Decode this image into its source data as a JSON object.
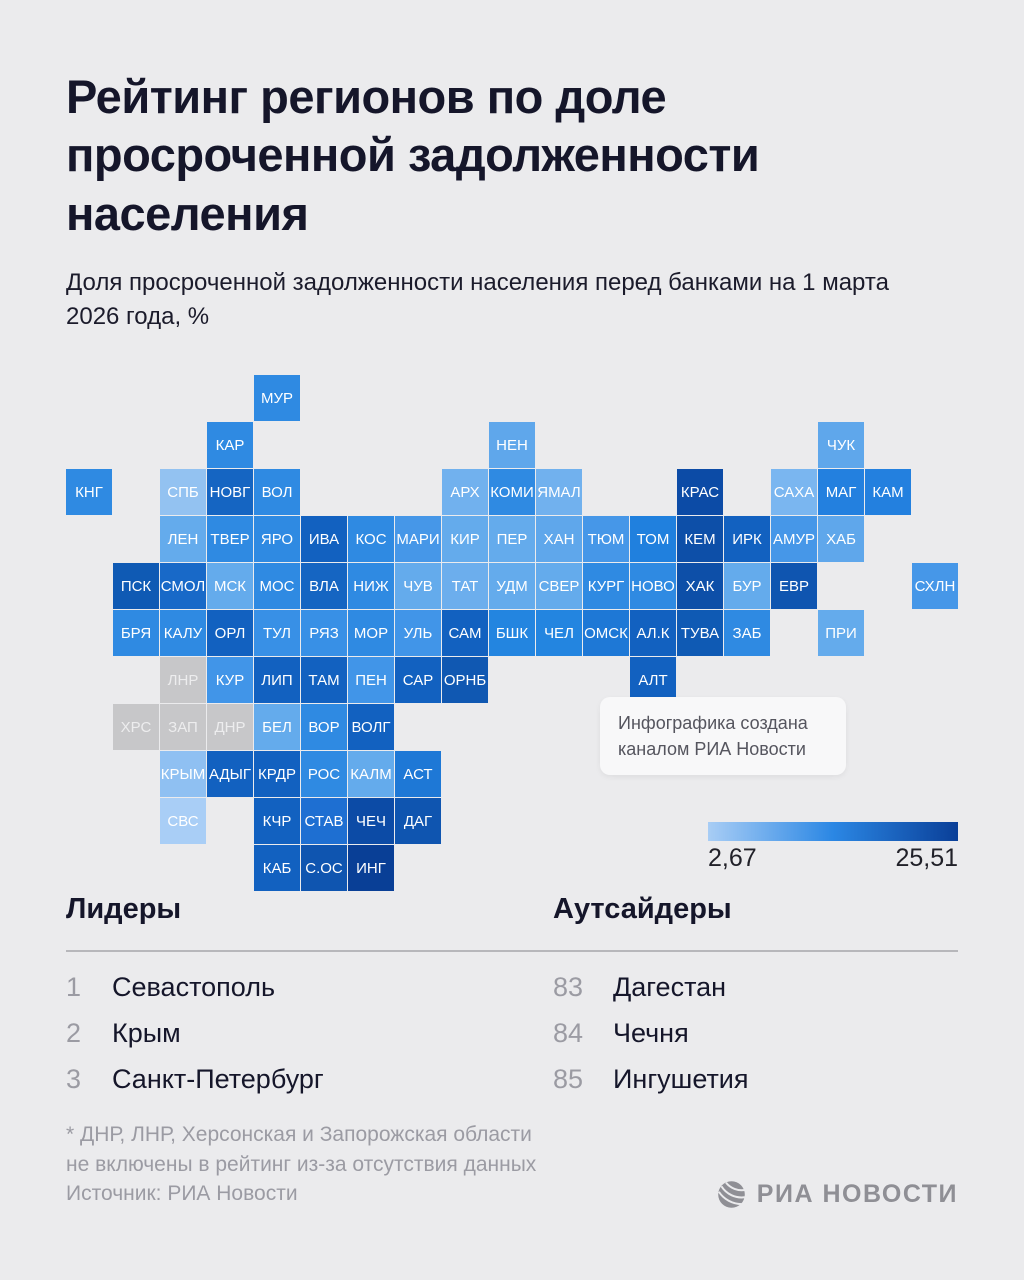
{
  "header": {
    "title": "Рейтинг регионов по доле просроченной задолженности населения",
    "subtitle": "Доля просроченной задолженности населения перед банками на 1 марта 2026 года, %"
  },
  "chart_data": {
    "type": "heatmap",
    "title": "Рейтинг регионов по доле просроченной задолженности населения",
    "subtitle": "Доля просроченной задолженности населения перед банками на 1 марта 2026 года, %",
    "unit": "%",
    "scale": {
      "min": 2.67,
      "max": 25.51,
      "min_label": "2,67",
      "max_label": "25,51",
      "gradient_colors": [
        "#a8cdf5",
        "#2b87e4",
        "#0a3f98"
      ],
      "excluded_color": "#c7c7c9"
    },
    "tiles": [
      {
        "label": "МУР",
        "row": 0,
        "col": 4,
        "color": "#2f8ae2"
      },
      {
        "label": "КАР",
        "row": 1,
        "col": 3,
        "color": "#2f8ae2"
      },
      {
        "label": "НЕН",
        "row": 1,
        "col": 9,
        "color": "#5fa7eb"
      },
      {
        "label": "ЧУК",
        "row": 1,
        "col": 16,
        "color": "#5fa7eb"
      },
      {
        "label": "КНГ",
        "row": 2,
        "col": 0,
        "color": "#2f8ae2"
      },
      {
        "label": "СПБ",
        "row": 2,
        "col": 2,
        "color": "#93c2f1"
      },
      {
        "label": "НОВГ",
        "row": 2,
        "col": 3,
        "color": "#1565c2"
      },
      {
        "label": "ВОЛ",
        "row": 2,
        "col": 4,
        "color": "#2f8ae2"
      },
      {
        "label": "АРХ",
        "row": 2,
        "col": 8,
        "color": "#71b1ee"
      },
      {
        "label": "КОМИ",
        "row": 2,
        "col": 9,
        "color": "#2f8ae2"
      },
      {
        "label": "ЯМАЛ",
        "row": 2,
        "col": 10,
        "color": "#71b1ee"
      },
      {
        "label": "КРАС",
        "row": 2,
        "col": 13,
        "color": "#0c4ba6"
      },
      {
        "label": "САХА",
        "row": 2,
        "col": 15,
        "color": "#7ab6f0"
      },
      {
        "label": "МАГ",
        "row": 2,
        "col": 16,
        "color": "#2380df"
      },
      {
        "label": "КАМ",
        "row": 2,
        "col": 17,
        "color": "#2380df"
      },
      {
        "label": "ЛЕН",
        "row": 3,
        "col": 2,
        "color": "#64abec"
      },
      {
        "label": "ТВЕР",
        "row": 3,
        "col": 3,
        "color": "#2f8ae2"
      },
      {
        "label": "ЯРО",
        "row": 3,
        "col": 4,
        "color": "#2f8ae2"
      },
      {
        "label": "ИВА",
        "row": 3,
        "col": 5,
        "color": "#1261c0"
      },
      {
        "label": "КОС",
        "row": 3,
        "col": 6,
        "color": "#2f8ae2"
      },
      {
        "label": "МАРИ",
        "row": 3,
        "col": 7,
        "color": "#4697e8"
      },
      {
        "label": "КИР",
        "row": 3,
        "col": 8,
        "color": "#64abec"
      },
      {
        "label": "ПЕР",
        "row": 3,
        "col": 9,
        "color": "#64abec"
      },
      {
        "label": "ХАН",
        "row": 3,
        "col": 10,
        "color": "#5fa7eb"
      },
      {
        "label": "ТЮМ",
        "row": 3,
        "col": 11,
        "color": "#4697e8"
      },
      {
        "label": "ТОМ",
        "row": 3,
        "col": 12,
        "color": "#2080de"
      },
      {
        "label": "КЕМ",
        "row": 3,
        "col": 13,
        "color": "#0d4fa8"
      },
      {
        "label": "ИРК",
        "row": 3,
        "col": 14,
        "color": "#1261c0"
      },
      {
        "label": "АМУР",
        "row": 3,
        "col": 15,
        "color": "#4697e8"
      },
      {
        "label": "ХАБ",
        "row": 3,
        "col": 16,
        "color": "#5fa7eb"
      },
      {
        "label": "ПСК",
        "row": 4,
        "col": 1,
        "color": "#0f5ab4"
      },
      {
        "label": "СМОЛ",
        "row": 4,
        "col": 2,
        "color": "#1869c8"
      },
      {
        "label": "МСК",
        "row": 4,
        "col": 3,
        "color": "#64abec"
      },
      {
        "label": "МОС",
        "row": 4,
        "col": 4,
        "color": "#2f8ae2"
      },
      {
        "label": "ВЛА",
        "row": 4,
        "col": 5,
        "color": "#1565c2"
      },
      {
        "label": "НИЖ",
        "row": 4,
        "col": 6,
        "color": "#2f8ae2"
      },
      {
        "label": "ЧУВ",
        "row": 4,
        "col": 7,
        "color": "#64abec"
      },
      {
        "label": "ТАТ",
        "row": 4,
        "col": 8,
        "color": "#6caeed"
      },
      {
        "label": "УДМ",
        "row": 4,
        "col": 9,
        "color": "#64abec"
      },
      {
        "label": "СВЕР",
        "row": 4,
        "col": 10,
        "color": "#64abec"
      },
      {
        "label": "КУРГ",
        "row": 4,
        "col": 11,
        "color": "#2f8ae2"
      },
      {
        "label": "НОВО",
        "row": 4,
        "col": 12,
        "color": "#2f8ae2"
      },
      {
        "label": "ХАК",
        "row": 4,
        "col": 13,
        "color": "#0d4fa8"
      },
      {
        "label": "БУР",
        "row": 4,
        "col": 14,
        "color": "#64abec"
      },
      {
        "label": "ЕВР",
        "row": 4,
        "col": 15,
        "color": "#0f55b0"
      },
      {
        "label": "СХЛН",
        "row": 4,
        "col": 18,
        "color": "#4697e8"
      },
      {
        "label": "БРЯ",
        "row": 5,
        "col": 1,
        "color": "#2f8ae2"
      },
      {
        "label": "КАЛУ",
        "row": 5,
        "col": 2,
        "color": "#2f8ae2"
      },
      {
        "label": "ОРЛ",
        "row": 5,
        "col": 3,
        "color": "#1261c0"
      },
      {
        "label": "ТУЛ",
        "row": 5,
        "col": 4,
        "color": "#3890e6"
      },
      {
        "label": "РЯЗ",
        "row": 5,
        "col": 5,
        "color": "#3890e6"
      },
      {
        "label": "МОР",
        "row": 5,
        "col": 6,
        "color": "#2f8ae2"
      },
      {
        "label": "УЛЬ",
        "row": 5,
        "col": 7,
        "color": "#4195e8"
      },
      {
        "label": "САМ",
        "row": 5,
        "col": 8,
        "color": "#1261c0"
      },
      {
        "label": "БШК",
        "row": 5,
        "col": 9,
        "color": "#2385e0"
      },
      {
        "label": "ЧЕЛ",
        "row": 5,
        "col": 10,
        "color": "#2385e0"
      },
      {
        "label": "ОМСК",
        "row": 5,
        "col": 11,
        "color": "#1e78d6"
      },
      {
        "label": "АЛ.К",
        "row": 5,
        "col": 12,
        "color": "#1261c0"
      },
      {
        "label": "ТУВА",
        "row": 5,
        "col": 13,
        "color": "#0f5ab4"
      },
      {
        "label": "ЗАБ",
        "row": 5,
        "col": 14,
        "color": "#2f8ae2"
      },
      {
        "label": "ПРИ",
        "row": 5,
        "col": 16,
        "color": "#64abec"
      },
      {
        "label": "ЛНР",
        "row": 6,
        "col": 2,
        "color": "#c7c7c9",
        "text": "#ededee",
        "excluded": true
      },
      {
        "label": "КУР",
        "row": 6,
        "col": 3,
        "color": "#4195e8"
      },
      {
        "label": "ЛИП",
        "row": 6,
        "col": 4,
        "color": "#1261c0"
      },
      {
        "label": "ТАМ",
        "row": 6,
        "col": 5,
        "color": "#1261c0"
      },
      {
        "label": "ПЕН",
        "row": 6,
        "col": 6,
        "color": "#4195e8"
      },
      {
        "label": "САР",
        "row": 6,
        "col": 7,
        "color": "#1261c0"
      },
      {
        "label": "ОРНБ",
        "row": 6,
        "col": 8,
        "color": "#1058b2"
      },
      {
        "label": "АЛТ",
        "row": 6,
        "col": 12,
        "color": "#1261c0"
      },
      {
        "label": "ХРС",
        "row": 7,
        "col": 1,
        "color": "#c7c7c9",
        "text": "#ededee",
        "excluded": true
      },
      {
        "label": "ЗАП",
        "row": 7,
        "col": 2,
        "color": "#c7c7c9",
        "text": "#ededee",
        "excluded": true
      },
      {
        "label": "ДНР",
        "row": 7,
        "col": 3,
        "color": "#c7c7c9",
        "text": "#ededee",
        "excluded": true
      },
      {
        "label": "БЕЛ",
        "row": 7,
        "col": 4,
        "color": "#64abec"
      },
      {
        "label": "ВОР",
        "row": 7,
        "col": 5,
        "color": "#2f8ae2"
      },
      {
        "label": "ВОЛГ",
        "row": 7,
        "col": 6,
        "color": "#1261c0"
      },
      {
        "label": "КРЫМ",
        "row": 8,
        "col": 2,
        "color": "#8fc0f2"
      },
      {
        "label": "АДЫГ",
        "row": 8,
        "col": 3,
        "color": "#1261c0"
      },
      {
        "label": "КРДР",
        "row": 8,
        "col": 4,
        "color": "#1261c0"
      },
      {
        "label": "РОС",
        "row": 8,
        "col": 5,
        "color": "#2f8ae2"
      },
      {
        "label": "КАЛМ",
        "row": 8,
        "col": 6,
        "color": "#64abec"
      },
      {
        "label": "АСТ",
        "row": 8,
        "col": 7,
        "color": "#1e78d6"
      },
      {
        "label": "СВС",
        "row": 9,
        "col": 2,
        "color": "#a9cef6"
      },
      {
        "label": "КЧР",
        "row": 9,
        "col": 4,
        "color": "#1261c0"
      },
      {
        "label": "СТАВ",
        "row": 9,
        "col": 5,
        "color": "#1e6fd2"
      },
      {
        "label": "ЧЕЧ",
        "row": 9,
        "col": 6,
        "color": "#0c4ba6"
      },
      {
        "label": "ДАГ",
        "row": 9,
        "col": 7,
        "color": "#0f55b0"
      },
      {
        "label": "КАБ",
        "row": 10,
        "col": 4,
        "color": "#1261c0"
      },
      {
        "label": "С.ОС",
        "row": 10,
        "col": 5,
        "color": "#0f55b0"
      },
      {
        "label": "ИНГ",
        "row": 10,
        "col": 6,
        "color": "#093f96"
      }
    ],
    "leaders": {
      "heading": "Лидеры",
      "items": [
        {
          "rank": "1",
          "name": "Севастополь"
        },
        {
          "rank": "2",
          "name": "Крым"
        },
        {
          "rank": "3",
          "name": "Санкт-Петербург"
        }
      ]
    },
    "outsiders": {
      "heading": "Аутсайдеры",
      "items": [
        {
          "rank": "83",
          "name": "Дагестан"
        },
        {
          "rank": "84",
          "name": "Чечня"
        },
        {
          "rank": "85",
          "name": "Ингушетия"
        }
      ]
    }
  },
  "note_card": {
    "text": "Инфографика создана каналом РИА Новости"
  },
  "legend": {
    "min_label": "2,67",
    "max_label": "25,51"
  },
  "footnote": {
    "line1": "* ДНР, ЛНР, Херсонская и Запорожская области",
    "line2": "не включены в рейтинг из-за отсутствия данных"
  },
  "source": "Источник: РИА Новости",
  "logo": {
    "text": "РИА НОВОСТИ"
  }
}
